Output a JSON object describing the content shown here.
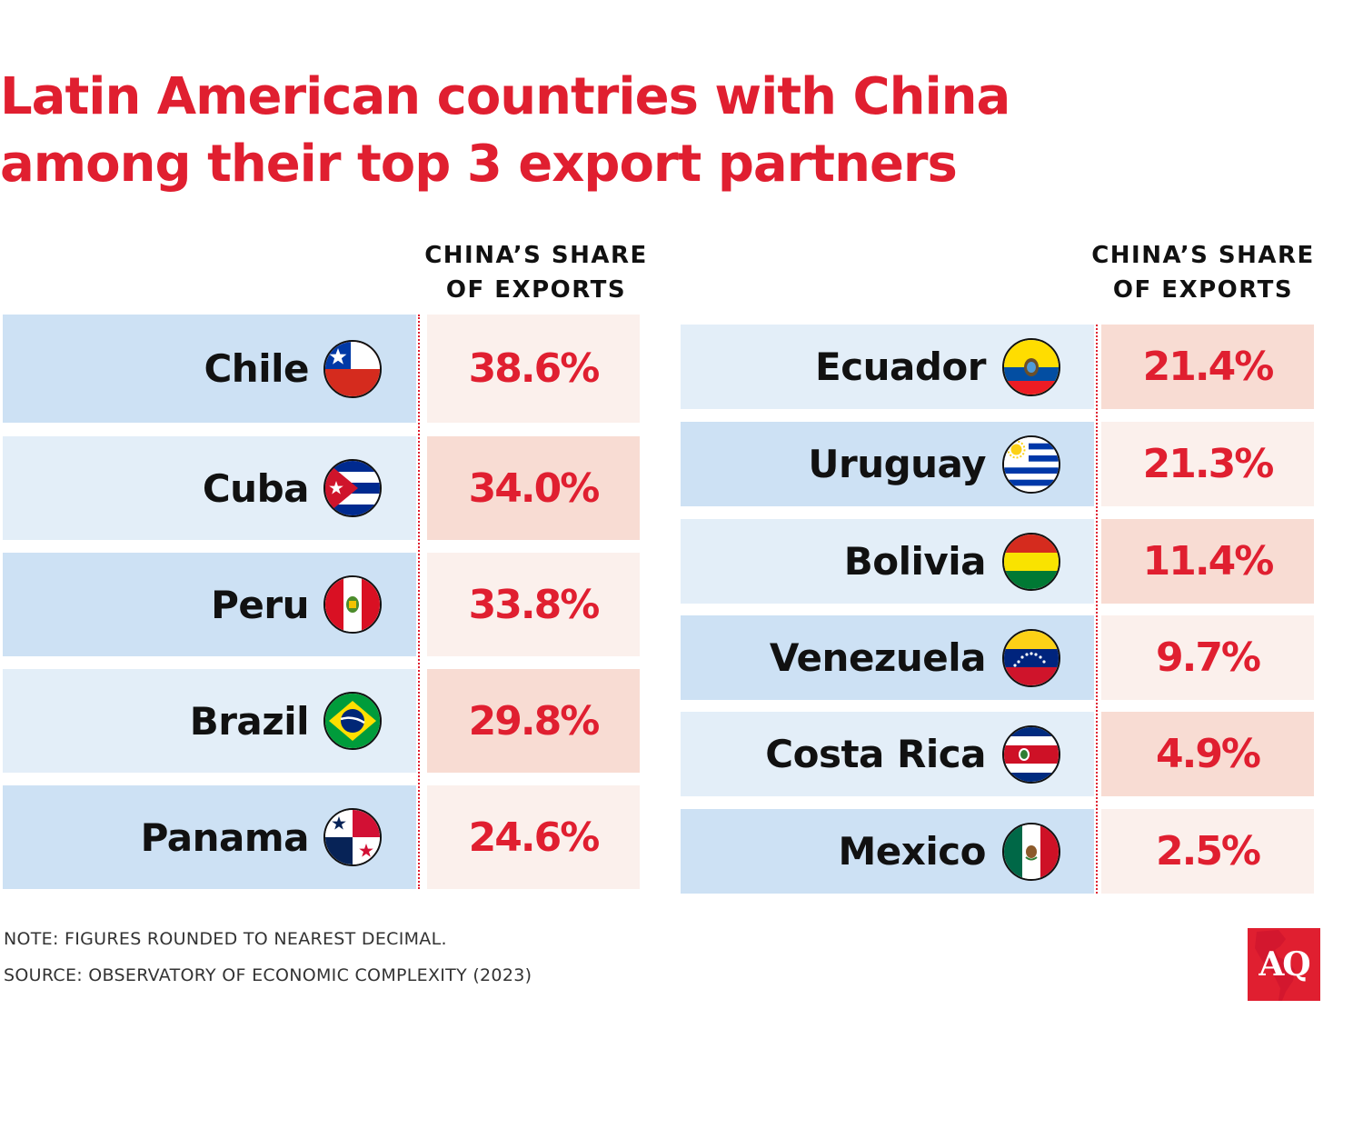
{
  "title": {
    "line1": "Latin American countries with China",
    "line2": "among their top 3 export partners"
  },
  "colors": {
    "accent": "#e01f30",
    "name_dark": "#cde1f4",
    "name_light": "#e3eef8",
    "value_dark": "#f8dcd3",
    "value_light": "#fbf0ec"
  },
  "chart_data": {
    "type": "table",
    "title": "Latin American countries with China among their top 3 export partners",
    "column_header": {
      "line1": "CHINA’S SHARE",
      "line2": "OF EXPORTS"
    },
    "left_table": [
      {
        "country": "Chile",
        "value": "38.6%",
        "flag": "chile-flag-icon"
      },
      {
        "country": "Cuba",
        "value": "34.0%",
        "flag": "cuba-flag-icon"
      },
      {
        "country": "Peru",
        "value": "33.8%",
        "flag": "peru-flag-icon"
      },
      {
        "country": "Brazil",
        "value": "29.8%",
        "flag": "brazil-flag-icon"
      },
      {
        "country": "Panama",
        "value": "24.6%",
        "flag": "panama-flag-icon"
      }
    ],
    "right_table": [
      {
        "country": "Ecuador",
        "value": "21.4%",
        "flag": "ecuador-flag-icon"
      },
      {
        "country": "Uruguay",
        "value": "21.3%",
        "flag": "uruguay-flag-icon"
      },
      {
        "country": "Bolivia",
        "value": "11.4%",
        "flag": "bolivia-flag-icon"
      },
      {
        "country": "Venezuela",
        "value": "9.7%",
        "flag": "venezuela-flag-icon"
      },
      {
        "country": "Costa Rica",
        "value": "4.9%",
        "flag": "costa-rica-flag-icon"
      },
      {
        "country": "Mexico",
        "value": "2.5%",
        "flag": "mexico-flag-icon"
      }
    ]
  },
  "footer": {
    "note": "NOTE: FIGURES ROUNDED TO NEAREST DECIMAL.",
    "source": "SOURCE: OBSERVATORY OF ECONOMIC COMPLEXITY (2023)"
  },
  "logo": {
    "text": "AQ"
  }
}
